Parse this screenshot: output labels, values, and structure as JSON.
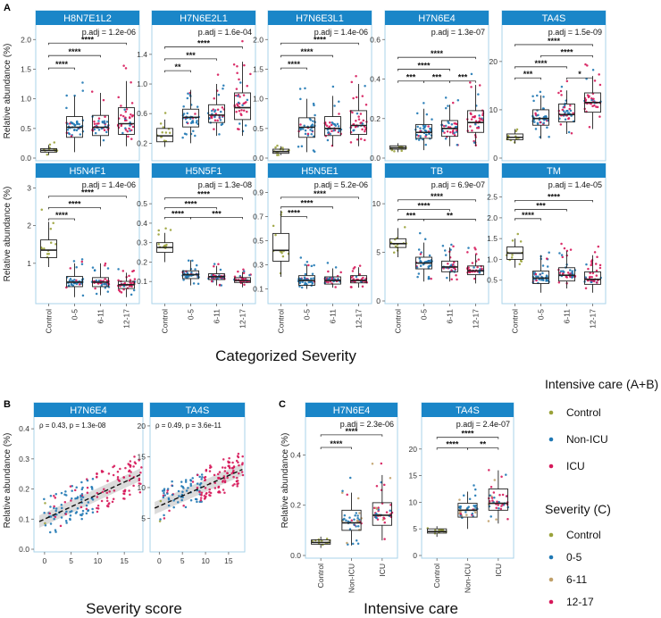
{
  "colors": {
    "strip": "#1a86c8",
    "strip_text": "#ffffff",
    "panel_border": "#a9d3ea",
    "control": "#9aa23a",
    "nonicu": "#1f78b4",
    "icu": "#d6185a",
    "g1": "#1f78b4",
    "g2": "#c0a06a",
    "g3": "#d6185a"
  },
  "labels": {
    "panel_a": "A",
    "panel_b": "B",
    "panel_c": "C",
    "ylabel": "Relative abundance (%)",
    "a_xlabel": "Categorized Severity",
    "b_xlabel": "Severity score",
    "c_xlabel": "Intensive care"
  },
  "legend": {
    "ab_title": "Intensive care (A+B)",
    "ab_items": [
      "Control",
      "Non-ICU",
      "ICU"
    ],
    "c_title": "Severity (C)",
    "c_items": [
      "Control",
      "0-5",
      "6-11",
      "12-17"
    ]
  },
  "chart_data": [
    {
      "type": "boxplot",
      "panel": "A",
      "categories": [
        "Control",
        "0-5",
        "6-11",
        "12-17"
      ],
      "ylabel": "Relative abundance (%)",
      "xlabel": "Categorized Severity",
      "facets": [
        {
          "title": "H8N7E1L2",
          "padj": "p.adj = 1.2e-06",
          "ylim": [
            0,
            2.2
          ],
          "yticks": [
            0,
            0.5,
            1,
            1.5,
            2
          ],
          "yticklabels": [
            "0.0",
            "0.5",
            "1.0",
            "1.5",
            "2.0"
          ],
          "boxes": [
            [
              0.05,
              0.1,
              0.13,
              0.16,
              0.22
            ],
            [
              0.1,
              0.35,
              0.52,
              0.7,
              1.05
            ],
            [
              0.2,
              0.38,
              0.52,
              0.72,
              1.1
            ],
            [
              0.2,
              0.4,
              0.58,
              0.85,
              1.3
            ]
          ],
          "brackets": [
            {
              "from": 0,
              "to": 1,
              "label": "****",
              "y": 1.52
            },
            {
              "from": 0,
              "to": 2,
              "label": "****",
              "y": 1.73
            },
            {
              "from": 0,
              "to": 3,
              "label": "****",
              "y": 1.94
            }
          ]
        },
        {
          "title": "H7N6E2L1",
          "padj": "p.adj = 1.6e-04",
          "ylim": [
            0,
            1.76
          ],
          "yticks": [
            0.2,
            0.6,
            1.0,
            1.4
          ],
          "yticklabels": [
            "0.2",
            "0.6",
            "1.0",
            "1.4"
          ],
          "boxes": [
            [
              0.15,
              0.22,
              0.3,
              0.4,
              0.52
            ],
            [
              0.2,
              0.42,
              0.55,
              0.66,
              0.92
            ],
            [
              0.3,
              0.48,
              0.58,
              0.72,
              1.0
            ],
            [
              0.3,
              0.52,
              0.68,
              0.88,
              1.3
            ]
          ],
          "brackets": [
            {
              "from": 0,
              "to": 1,
              "label": "**",
              "y": 1.18
            },
            {
              "from": 0,
              "to": 2,
              "label": "***",
              "y": 1.34
            },
            {
              "from": 0,
              "to": 3,
              "label": "****",
              "y": 1.5
            }
          ]
        },
        {
          "title": "H7N6E3L1",
          "padj": "p.adj = 1.4e-06",
          "ylim": [
            0,
            2.2
          ],
          "yticks": [
            0,
            0.5,
            1,
            1.5,
            2
          ],
          "yticklabels": [
            "0.0",
            "0.5",
            "1.0",
            "1.5",
            "2.0"
          ],
          "boxes": [
            [
              0.05,
              0.08,
              0.11,
              0.15,
              0.2
            ],
            [
              0.1,
              0.35,
              0.52,
              0.68,
              1.0
            ],
            [
              0.2,
              0.38,
              0.5,
              0.7,
              1.05
            ],
            [
              0.2,
              0.4,
              0.55,
              0.8,
              1.25
            ]
          ],
          "brackets": [
            {
              "from": 0,
              "to": 1,
              "label": "****",
              "y": 1.52
            },
            {
              "from": 0,
              "to": 2,
              "label": "****",
              "y": 1.73
            },
            {
              "from": 0,
              "to": 3,
              "label": "****",
              "y": 1.94
            }
          ]
        },
        {
          "title": "H7N6E4",
          "padj": "p.adj = 1.3e-07",
          "ylim": [
            0,
            0.66
          ],
          "yticks": [
            0,
            0.2,
            0.4,
            0.6
          ],
          "yticklabels": [
            "0.0",
            "0.2",
            "0.4",
            "0.6"
          ],
          "boxes": [
            [
              0.03,
              0.045,
              0.052,
              0.062,
              0.075
            ],
            [
              0.04,
              0.1,
              0.13,
              0.17,
              0.25
            ],
            [
              0.06,
              0.11,
              0.15,
              0.19,
              0.27
            ],
            [
              0.06,
              0.13,
              0.18,
              0.24,
              0.37
            ]
          ],
          "brackets": [
            {
              "from": 1,
              "to": 2,
              "label": "***",
              "y": 0.39
            },
            {
              "from": 0,
              "to": 1,
              "label": "***",
              "y": 0.39
            },
            {
              "from": 0,
              "to": 2,
              "label": "****",
              "y": 0.45
            },
            {
              "from": 0,
              "to": 3,
              "label": "****",
              "y": 0.51
            },
            {
              "from": 2,
              "to": 3,
              "label": "***",
              "y": 0.39
            }
          ]
        },
        {
          "title": "TA4S",
          "padj": "p.adj = 1.5e-09",
          "ylim": [
            0,
            27
          ],
          "yticks": [
            0,
            10,
            20
          ],
          "yticklabels": [
            "0",
            "10",
            "20"
          ],
          "boxes": [
            [
              3,
              3.8,
              4.3,
              5,
              6
            ],
            [
              4,
              6.8,
              8.2,
              10,
              13
            ],
            [
              5,
              7.5,
              9,
              11.2,
              14
            ],
            [
              6,
              9.5,
              11.5,
              13.5,
              17
            ]
          ],
          "brackets": [
            {
              "from": 0,
              "to": 1,
              "label": "***",
              "y": 16.6
            },
            {
              "from": 2,
              "to": 3,
              "label": "*",
              "y": 16.6
            },
            {
              "from": 0,
              "to": 2,
              "label": "****",
              "y": 18.9
            },
            {
              "from": 1,
              "to": 3,
              "label": "****",
              "y": 21.2
            },
            {
              "from": 0,
              "to": 3,
              "label": "****",
              "y": 23.5
            }
          ]
        },
        {
          "title": "H5N4F1",
          "padj": "p.adj = 1.4e-06",
          "ylim": [
            0,
            3.2
          ],
          "yticks": [
            1,
            2,
            3
          ],
          "yticklabels": [
            "1",
            "2",
            "3"
          ],
          "boxes": [
            [
              0.9,
              1.15,
              1.35,
              1.62,
              2.1
            ],
            [
              0.1,
              0.38,
              0.5,
              0.65,
              1.0
            ],
            [
              0.15,
              0.38,
              0.5,
              0.62,
              1.0
            ],
            [
              0.1,
              0.33,
              0.43,
              0.52,
              0.75
            ]
          ],
          "brackets": [
            {
              "from": 0,
              "to": 1,
              "label": "****",
              "y": 2.18
            },
            {
              "from": 0,
              "to": 2,
              "label": "****",
              "y": 2.48
            },
            {
              "from": 0,
              "to": 3,
              "label": "****",
              "y": 2.78
            }
          ]
        },
        {
          "title": "H5N5F1",
          "padj": "p.adj = 1.3e-08",
          "ylim": [
            0,
            0.62
          ],
          "yticks": [
            0.1,
            0.2,
            0.3,
            0.4,
            0.5
          ],
          "yticklabels": [
            "0.1",
            "0.2",
            "0.3",
            "0.4",
            "0.5"
          ],
          "boxes": [
            [
              0.2,
              0.25,
              0.275,
              0.3,
              0.35
            ],
            [
              0.08,
              0.115,
              0.135,
              0.155,
              0.21
            ],
            [
              0.08,
              0.11,
              0.125,
              0.14,
              0.18
            ],
            [
              0.07,
              0.095,
              0.105,
              0.12,
              0.15
            ]
          ],
          "brackets": [
            {
              "from": 0,
              "to": 1,
              "label": "****",
              "y": 0.43
            },
            {
              "from": 1,
              "to": 3,
              "label": "***",
              "y": 0.43
            },
            {
              "from": 0,
              "to": 2,
              "label": "****",
              "y": 0.48
            },
            {
              "from": 0,
              "to": 3,
              "label": "****",
              "y": 0.53
            }
          ]
        },
        {
          "title": "H5N5E1",
          "padj": "p.adj = 5.2e-06",
          "ylim": [
            0,
            1.0
          ],
          "yticks": [
            0.1,
            0.3,
            0.5,
            0.7,
            0.9
          ],
          "yticklabels": [
            "0.1",
            "0.3",
            "0.5",
            "0.7",
            "0.9"
          ],
          "boxes": [
            [
              0.2,
              0.33,
              0.42,
              0.56,
              0.75
            ],
            [
              0.1,
              0.13,
              0.17,
              0.21,
              0.3
            ],
            [
              0.11,
              0.14,
              0.17,
              0.2,
              0.27
            ],
            [
              0.11,
              0.15,
              0.17,
              0.21,
              0.28
            ]
          ],
          "brackets": [
            {
              "from": 0,
              "to": 1,
              "label": "****",
              "y": 0.7
            },
            {
              "from": 0,
              "to": 2,
              "label": "****",
              "y": 0.78
            },
            {
              "from": 0,
              "to": 3,
              "label": "****",
              "y": 0.86
            }
          ]
        },
        {
          "title": "TB",
          "padj": "p.adj = 6.9e-07",
          "ylim": [
            0,
            12.4
          ],
          "yticks": [
            0,
            5,
            10
          ],
          "yticklabels": [
            "0",
            "5",
            "10"
          ],
          "boxes": [
            [
              4.5,
              5.5,
              5.9,
              6.4,
              7.5
            ],
            [
              2,
              3.3,
              3.9,
              4.5,
              6
            ],
            [
              2,
              3,
              3.5,
              4.1,
              5.5
            ],
            [
              1.8,
              2.7,
              3.1,
              3.6,
              4.8
            ]
          ],
          "brackets": [
            {
              "from": 0,
              "to": 1,
              "label": "***",
              "y": 8.4
            },
            {
              "from": 1,
              "to": 3,
              "label": "**",
              "y": 8.4
            },
            {
              "from": 0,
              "to": 2,
              "label": "****",
              "y": 9.4
            },
            {
              "from": 0,
              "to": 3,
              "label": "****",
              "y": 10.4
            }
          ]
        },
        {
          "title": "TM",
          "padj": "p.adj = 1.4e-05",
          "ylim": [
            0,
            2.9
          ],
          "yticks": [
            0.5,
            1,
            1.5,
            2,
            2.5
          ],
          "yticklabels": [
            "0.5",
            "1.0",
            "1.5",
            "2.0",
            "2.5"
          ],
          "boxes": [
            [
              0.8,
              1.0,
              1.15,
              1.3,
              1.5
            ],
            [
              0.2,
              0.42,
              0.55,
              0.72,
              1.1
            ],
            [
              0.3,
              0.48,
              0.62,
              0.8,
              1.2
            ],
            [
              0.2,
              0.4,
              0.52,
              0.7,
              1.1
            ]
          ],
          "brackets": [
            {
              "from": 0,
              "to": 1,
              "label": "****",
              "y": 1.98
            },
            {
              "from": 0,
              "to": 2,
              "label": "***",
              "y": 2.2
            },
            {
              "from": 0,
              "to": 3,
              "label": "****",
              "y": 2.42
            }
          ]
        }
      ]
    },
    {
      "type": "scatter",
      "panel": "B",
      "xlabel": "Severity score",
      "ylabel": "Relative abundance (%)",
      "facets": [
        {
          "title": "H7N6E4",
          "annotation": "ρ = 0.43, p = 1.3e-08",
          "xlim": [
            -2,
            18.5
          ],
          "ylim": [
            0,
            0.43
          ],
          "xticks": [
            0,
            5,
            10,
            15
          ],
          "xticklabels": [
            "0",
            "5",
            "10",
            "15"
          ],
          "yticks": [
            0,
            0.1,
            0.2,
            0.3,
            0.4
          ],
          "yticklabels": [
            "0.0",
            "0.1",
            "0.2",
            "0.3",
            "0.4"
          ],
          "fit": {
            "intercept": 0.1,
            "slope": 0.0082
          },
          "noise": 0.06
        },
        {
          "title": "TA4S",
          "annotation": "ρ = 0.49, p = 3.6e-11",
          "xlim": [
            -2,
            18.5
          ],
          "ylim": [
            0,
            21
          ],
          "xticks": [
            0,
            5,
            10,
            15
          ],
          "xticklabels": [
            "0",
            "5",
            "10",
            "15"
          ],
          "yticks": [
            5,
            10,
            15,
            20
          ],
          "yticklabels": [
            "5",
            "10",
            "15",
            "20"
          ],
          "fit": {
            "intercept": 7,
            "slope": 0.33
          },
          "noise": 2.5
        }
      ]
    },
    {
      "type": "boxplot",
      "panel": "C",
      "categories": [
        "Control",
        "Non-ICU",
        "ICU"
      ],
      "xlabel": "Intensive care",
      "ylabel": "Relative abundance (%)",
      "facets": [
        {
          "title": "H7N6E4",
          "padj": "p.adj = 2.3e-06",
          "ylim": [
            0,
            0.54
          ],
          "yticks": [
            0,
            0.2,
            0.4
          ],
          "yticklabels": [
            "0.0",
            "0.2",
            "0.4"
          ],
          "boxes": [
            [
              0.03,
              0.045,
              0.052,
              0.062,
              0.075
            ],
            [
              0.04,
              0.1,
              0.13,
              0.18,
              0.25
            ],
            [
              0.06,
              0.12,
              0.16,
              0.21,
              0.32
            ]
          ],
          "brackets": [
            {
              "from": 0,
              "to": 1,
              "label": "****",
              "y": 0.43
            },
            {
              "from": 0,
              "to": 2,
              "label": "****",
              "y": 0.48
            }
          ]
        },
        {
          "title": "TA4S",
          "padj": "p.adj = 2.4e-07",
          "ylim": [
            0,
            25.5
          ],
          "yticks": [
            0,
            5,
            10,
            15,
            20
          ],
          "yticklabels": [
            "0",
            "5",
            "10",
            "15",
            "20"
          ],
          "boxes": [
            [
              3.5,
              4.2,
              4.5,
              5,
              5.5
            ],
            [
              5,
              7.2,
              8.5,
              9.8,
              12
            ],
            [
              6,
              8.5,
              9.8,
              12.5,
              16
            ]
          ],
          "brackets": [
            {
              "from": 0,
              "to": 1,
              "label": "****",
              "y": 20.2
            },
            {
              "from": 1,
              "to": 2,
              "label": "**",
              "y": 20.2
            },
            {
              "from": 0,
              "to": 2,
              "label": "****",
              "y": 22.2
            }
          ]
        }
      ]
    }
  ]
}
